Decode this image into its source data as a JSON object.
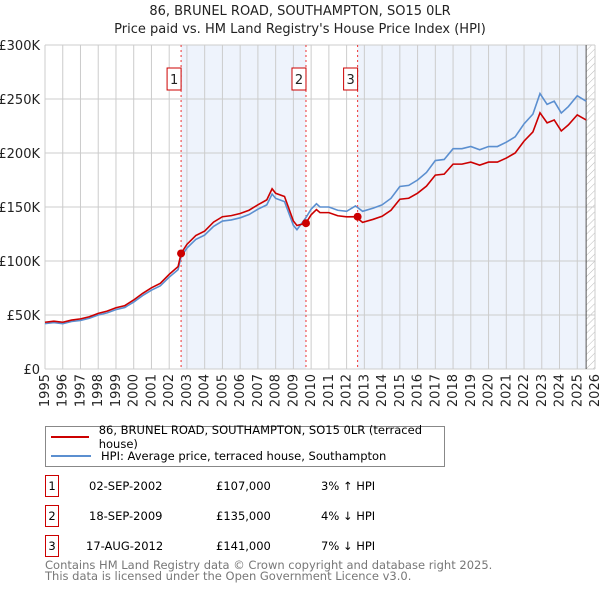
{
  "chart_data": {
    "type": "line",
    "title": "86, BRUNEL ROAD, SOUTHAMPTON, SO15 0LR",
    "subtitle": "Price paid vs. HM Land Registry's House Price Index (HPI)",
    "xlim": [
      1995,
      2026
    ],
    "ylim": [
      0,
      300000
    ],
    "x_ticks": [
      "1995",
      "1996",
      "1997",
      "1998",
      "1999",
      "2000",
      "2001",
      "2002",
      "2003",
      "2004",
      "2005",
      "2006",
      "2007",
      "2008",
      "2009",
      "2010",
      "2011",
      "2012",
      "2013",
      "2014",
      "2015",
      "2016",
      "2017",
      "2018",
      "2019",
      "2020",
      "2021",
      "2022",
      "2023",
      "2024",
      "2025",
      "2026"
    ],
    "y_ticks": [
      {
        "v": 0,
        "label": "£0"
      },
      {
        "v": 50000,
        "label": "£50K"
      },
      {
        "v": 100000,
        "label": "£100K"
      },
      {
        "v": 150000,
        "label": "£150K"
      },
      {
        "v": 200000,
        "label": "£200K"
      },
      {
        "v": 250000,
        "label": "£250K"
      },
      {
        "v": 300000,
        "label": "£300K"
      }
    ],
    "grid": true,
    "x": [
      1995,
      1995.5,
      1996,
      1996.5,
      1997,
      1997.5,
      1998,
      1998.5,
      1999,
      1999.5,
      2000,
      2000.5,
      2001,
      2001.5,
      2002,
      2002.5,
      2002.67,
      2003,
      2003.5,
      2004,
      2004.5,
      2005,
      2005.5,
      2006,
      2006.5,
      2007,
      2007.5,
      2007.8,
      2008,
      2008.5,
      2009,
      2009.2,
      2009.7,
      2010,
      2010.3,
      2010.5,
      2011,
      2011.5,
      2012,
      2012.5,
      2012.9,
      2013.5,
      2014,
      2014.5,
      2015,
      2015.5,
      2016,
      2016.5,
      2017,
      2017.5,
      2018,
      2018.5,
      2019,
      2019.5,
      2020,
      2020.5,
      2021,
      2021.5,
      2022,
      2022.5,
      2022.9,
      2023.3,
      2023.7,
      2024.1,
      2024.5,
      2025,
      2025.5
    ],
    "series": [
      {
        "name": "86, BRUNEL ROAD, SOUTHAMPTON, SO15 0LR (terraced house)",
        "color": "#cc0000",
        "values": [
          43.3,
          44.3,
          43.3,
          45.3,
          46.4,
          48.4,
          51.5,
          53.6,
          56.7,
          58.7,
          63.9,
          70,
          75.2,
          79.3,
          87.6,
          94.8,
          107,
          115.4,
          123.6,
          127.7,
          136,
          141,
          142,
          144,
          147,
          152,
          156.6,
          166.9,
          162.7,
          159.7,
          137,
          132.9,
          135,
          142.8,
          147.6,
          144.8,
          144.8,
          141.9,
          140.9,
          141,
          135.8,
          138.6,
          141.4,
          147,
          157.2,
          158.1,
          162.8,
          169.3,
          179.5,
          180.4,
          189.7,
          189.7,
          191.6,
          188.8,
          191.6,
          191.6,
          195.3,
          200,
          211,
          219.5,
          237.2,
          227.9,
          230.6,
          220.4,
          226,
          235.3,
          230.6
        ]
      },
      {
        "name": "HPI: Average price, terraced house, Southampton",
        "color": "#5b8fd0",
        "values": [
          42,
          43,
          42,
          44,
          45,
          47,
          50,
          52,
          55,
          57,
          62,
          68,
          73,
          77,
          85,
          92,
          104,
          112,
          120,
          124,
          132,
          137,
          138,
          140,
          143,
          148,
          152,
          162,
          158,
          155,
          133,
          129,
          140,
          148,
          153,
          150,
          150,
          147,
          146,
          151,
          146,
          149,
          152,
          158,
          169,
          170,
          175,
          182,
          193,
          194,
          204,
          204,
          206,
          203,
          206,
          206,
          210,
          215,
          227,
          236,
          255,
          245,
          248,
          237,
          243,
          253,
          248
        ]
      }
    ],
    "value_unit": "thousands GBP",
    "data_end": 2025.5,
    "sales": [
      {
        "n": "1",
        "x": 2002.67,
        "price": 107000,
        "date": "02-SEP-2002",
        "price_label": "£107,000",
        "hpi": "3% ↑ HPI"
      },
      {
        "n": "2",
        "x": 2009.71,
        "price": 135000,
        "date": "18-SEP-2009",
        "price_label": "£135,000",
        "hpi": "4% ↓ HPI"
      },
      {
        "n": "3",
        "x": 2012.62,
        "price": 141000,
        "date": "17-AUG-2012",
        "price_label": "£141,000",
        "hpi": "7% ↓ HPI"
      }
    ],
    "legend_position": "bottom"
  },
  "footer": {
    "line1": "Contains HM Land Registry data © Crown copyright and database right 2025.",
    "line2": "This data is licensed under the Open Government Licence v3.0."
  }
}
